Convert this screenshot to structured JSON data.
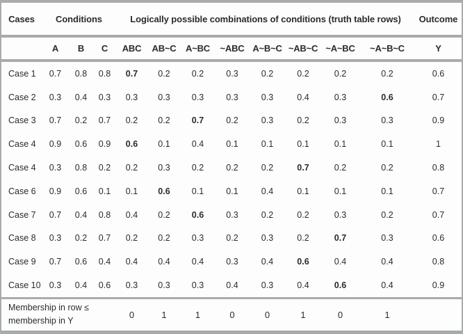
{
  "table": {
    "header_groups": [
      {
        "label": "Cases"
      },
      {
        "label": "Conditions"
      },
      {
        "label": "Logically possible combinations of conditions (truth table rows)"
      },
      {
        "label": "Outcome"
      }
    ],
    "columns": [
      "",
      "A",
      "B",
      "C",
      "ABC",
      "AB~C",
      "A~BC",
      "~ABC",
      "A~B~C",
      "~AB~C",
      "~A~BC",
      "~A~B~C",
      "Y"
    ],
    "rows": [
      {
        "label": "Case 1",
        "values": [
          "0.7",
          "0.8",
          "0.8",
          "0.7",
          "0.2",
          "0.2",
          "0.3",
          "0.2",
          "0.2",
          "0.2",
          "0.2",
          "0.6"
        ],
        "bold_index": 3
      },
      {
        "label": "Case 2",
        "values": [
          "0.3",
          "0.4",
          "0.3",
          "0.3",
          "0.3",
          "0.3",
          "0.3",
          "0.3",
          "0.4",
          "0.3",
          "0.6",
          "0.7"
        ],
        "bold_index": 10
      },
      {
        "label": "Case 3",
        "values": [
          "0.7",
          "0.2",
          "0.7",
          "0.2",
          "0.2",
          "0.7",
          "0.2",
          "0.3",
          "0.2",
          "0.3",
          "0.3",
          "0.9"
        ],
        "bold_index": 5
      },
      {
        "label": "Case 4",
        "values": [
          "0.9",
          "0.6",
          "0.9",
          "0.6",
          "0.1",
          "0.4",
          "0.1",
          "0.1",
          "0.1",
          "0.1",
          "0.1",
          "1"
        ],
        "bold_index": 3
      },
      {
        "label": "Case 4",
        "values": [
          "0.3",
          "0.8",
          "0.2",
          "0.2",
          "0.3",
          "0.2",
          "0.2",
          "0.2",
          "0.7",
          "0.2",
          "0.2",
          "0.8"
        ],
        "bold_index": 8
      },
      {
        "label": "Case 6",
        "values": [
          "0.9",
          "0.6",
          "0.1",
          "0.1",
          "0.6",
          "0.1",
          "0.1",
          "0.4",
          "0.1",
          "0.1",
          "0.1",
          "0.7"
        ],
        "bold_index": 4
      },
      {
        "label": "Case 7",
        "values": [
          "0.7",
          "0.4",
          "0.8",
          "0.4",
          "0.2",
          "0.6",
          "0.3",
          "0.2",
          "0.2",
          "0.3",
          "0.2",
          "0.7"
        ],
        "bold_index": 5
      },
      {
        "label": "Case 8",
        "values": [
          "0.3",
          "0.2",
          "0.7",
          "0.2",
          "0.2",
          "0.3",
          "0.2",
          "0.3",
          "0.2",
          "0.7",
          "0.3",
          "0.6"
        ],
        "bold_index": 9
      },
      {
        "label": "Case 9",
        "values": [
          "0.7",
          "0.6",
          "0.4",
          "0.4",
          "0.4",
          "0.4",
          "0.3",
          "0.4",
          "0.6",
          "0.4",
          "0.4",
          "0.8"
        ],
        "bold_index": 8
      },
      {
        "label": "Case 10",
        "values": [
          "0.3",
          "0.4",
          "0.6",
          "0.3",
          "0.3",
          "0.3",
          "0.4",
          "0.3",
          "0.4",
          "0.6",
          "0.4",
          "0.9"
        ],
        "bold_index": 9
      }
    ],
    "footer": {
      "label_line1": "Membership in row ≤",
      "label_line2": "membership in Y",
      "values": [
        "0",
        "1",
        "1",
        "0",
        "0",
        "1",
        "0",
        "1"
      ]
    }
  },
  "colors": {
    "rule_gray": "#a8abad",
    "text": "#2b2b2b",
    "background": "#fdfdfd"
  }
}
